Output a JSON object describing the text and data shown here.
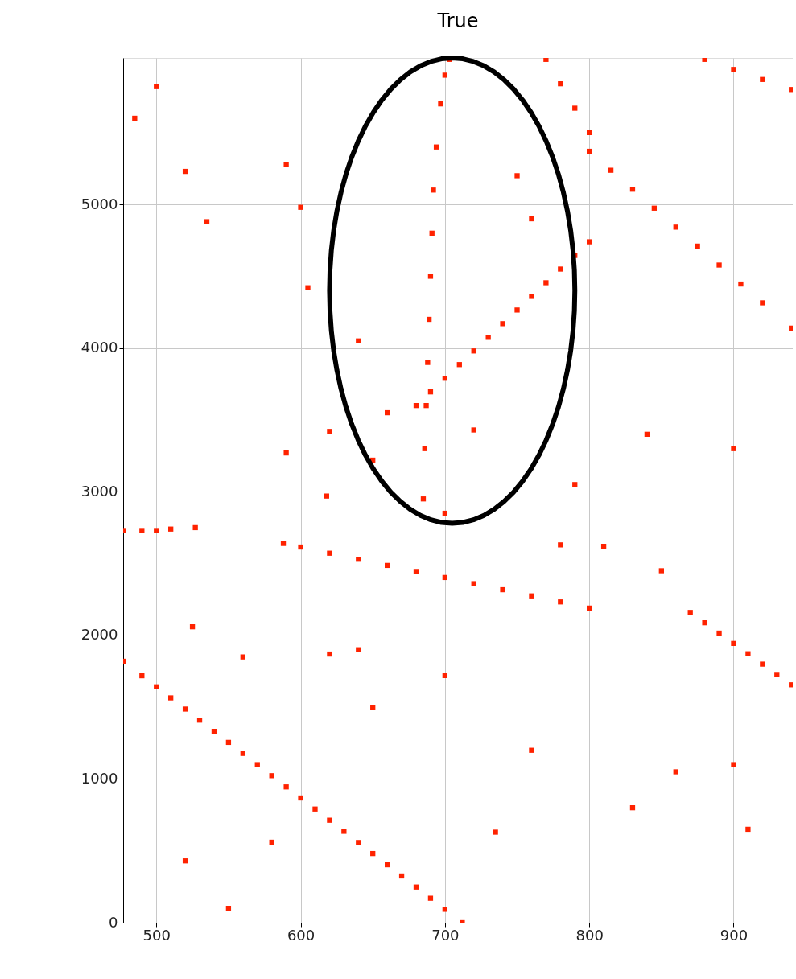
{
  "chart_data": {
    "type": "scatter",
    "title": "True",
    "xlim": [
      477,
      941
    ],
    "ylim": [
      0,
      6020
    ],
    "xticks": [
      500,
      600,
      700,
      800,
      900
    ],
    "yticks": [
      0,
      1000,
      2000,
      3000,
      4000,
      5000
    ],
    "grid": true,
    "marker": "square",
    "series": [
      {
        "color": "#ff2200",
        "x": [
          477,
          490,
          500,
          510,
          520,
          530,
          540,
          550,
          560,
          570,
          580,
          590,
          600,
          610,
          620,
          630,
          640,
          650,
          660,
          670,
          680,
          690,
          700,
          712,
          588,
          600,
          620,
          640,
          660,
          680,
          700,
          720,
          740,
          760,
          780,
          800,
          685,
          686,
          687,
          688,
          689,
          690,
          691,
          692,
          694,
          697,
          700,
          703,
          680,
          690,
          700,
          710,
          720,
          730,
          740,
          750,
          760,
          770,
          780,
          790,
          800,
          770,
          780,
          790,
          800,
          800,
          815,
          830,
          845,
          860,
          875,
          890,
          905,
          920,
          940,
          880,
          900,
          920,
          940,
          870,
          880,
          890,
          900,
          910,
          920,
          930,
          940,
          477,
          490,
          500,
          510,
          527,
          500,
          485,
          520,
          535,
          590,
          600,
          605,
          640,
          620,
          590,
          618,
          650,
          525,
          560,
          620,
          580,
          520,
          550,
          640,
          760,
          750,
          790,
          840,
          900,
          860,
          830,
          900,
          910,
          735,
          760,
          810,
          850,
          700,
          720,
          660,
          780,
          650,
          700
        ],
        "values": [
          1820,
          1719,
          1642,
          1565,
          1487,
          1410,
          1332,
          1255,
          1178,
          1100,
          1023,
          945,
          868,
          791,
          713,
          636,
          558,
          481,
          403,
          325,
          248,
          170,
          93,
          0,
          2640,
          2615,
          2572,
          2530,
          2487,
          2445,
          2403,
          2360,
          2318,
          2275,
          2233,
          2190,
          2950,
          3300,
          3600,
          3900,
          4200,
          4500,
          4800,
          5100,
          5400,
          5700,
          5900,
          6010,
          3600,
          3695,
          3790,
          3885,
          3980,
          4075,
          4170,
          4265,
          4360,
          4455,
          4550,
          4645,
          4740,
          6010,
          5840,
          5670,
          5500,
          5370,
          5238,
          5106,
          4974,
          4842,
          4710,
          4578,
          4446,
          4315,
          4139,
          6010,
          5940,
          5870,
          5800,
          2160,
          2088,
          2016,
          1944,
          1872,
          1800,
          1728,
          1656,
          2730,
          2730,
          2730,
          2740,
          2750,
          5820,
          5600,
          5230,
          4880,
          5280,
          4980,
          4420,
          4050,
          3420,
          3270,
          2970,
          3220,
          2060,
          1850,
          1870,
          560,
          430,
          100,
          1900,
          4900,
          5200,
          3050,
          3400,
          3300,
          1050,
          800,
          1100,
          650,
          630,
          1200,
          2620,
          2450,
          2850,
          3430,
          3550,
          2630,
          1500,
          1720
        ]
      }
    ]
  }
}
